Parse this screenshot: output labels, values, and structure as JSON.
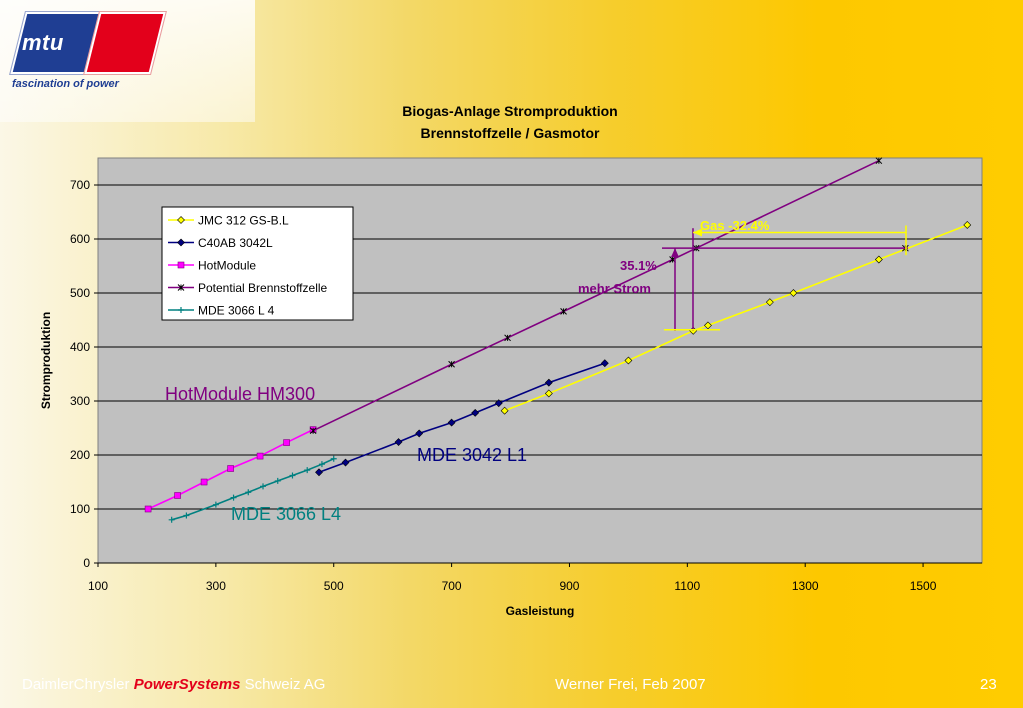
{
  "logo": {
    "brand": "mtu",
    "tagline": "fascination of power"
  },
  "chart_data": {
    "type": "line",
    "title": "Biogas-Anlage Stromproduktion",
    "subtitle": "Brennstoffzelle / Gasmotor",
    "xlabel": "Gasleistung",
    "ylabel": "Stromproduktion",
    "xlim": [
      100,
      1600
    ],
    "ylim": [
      0,
      750
    ],
    "xticks": [
      100,
      300,
      500,
      700,
      900,
      1100,
      1300,
      1500
    ],
    "yticks": [
      0,
      100,
      200,
      300,
      400,
      500,
      600,
      700
    ],
    "grid": "horizontal",
    "legend_position": "top-left",
    "series": [
      {
        "name": "JMC 312 GS-B.L",
        "color": "#ffff00",
        "marker": "diamond",
        "x": [
          790,
          865,
          1000,
          1110,
          1135,
          1240,
          1280,
          1425,
          1575
        ],
        "y": [
          282,
          314,
          375,
          430,
          440,
          483,
          500,
          562,
          626
        ]
      },
      {
        "name": "C40AB 3042L",
        "color": "#000080",
        "marker": "diamond",
        "x": [
          475,
          520,
          610,
          645,
          700,
          740,
          780,
          865,
          960
        ],
        "y": [
          168,
          186,
          224,
          240,
          260,
          278,
          296,
          334,
          370
        ]
      },
      {
        "name": "HotModule",
        "color": "#ff00ff",
        "marker": "square",
        "x": [
          185,
          235,
          280,
          325,
          375,
          420,
          465
        ],
        "y": [
          100,
          125,
          150,
          175,
          198,
          223,
          247
        ]
      },
      {
        "name": "Potential Brennstoffzelle",
        "color": "#800080",
        "marker": "star",
        "x": [
          465,
          700,
          795,
          890,
          1075,
          1115,
          1470,
          1425
        ],
        "y": [
          245,
          368,
          417,
          466,
          562,
          583,
          583,
          745
        ],
        "path_order": [
          0,
          1,
          2,
          3,
          4,
          5,
          7
        ]
      },
      {
        "name": "MDE 3066 L 4",
        "color": "#008080",
        "marker": "plus",
        "x": [
          225,
          250,
          300,
          330,
          355,
          380,
          405,
          430,
          455,
          480,
          500
        ],
        "y": [
          80,
          88,
          108,
          121,
          131,
          142,
          152,
          162,
          172,
          183,
          193
        ]
      }
    ],
    "annotations": [
      {
        "text": "HotModule HM300",
        "color": "#800080"
      },
      {
        "text": "MDE 3042 L1",
        "color": "#000080"
      },
      {
        "text": "MDE 3066 L4",
        "color": "#008080"
      },
      {
        "text": "35.1%",
        "color": "#800080"
      },
      {
        "text": "mehr Strom",
        "color": "#800080"
      },
      {
        "text": "Gas  -32.4%",
        "color": "#ffff00"
      }
    ]
  },
  "footer": {
    "company_prefix": "DaimlerChrysler ",
    "company_brand": "PowerSystems",
    "company_suffix": " Schweiz AG",
    "author": "Werner Frei,  Feb  2007",
    "page": "23"
  }
}
